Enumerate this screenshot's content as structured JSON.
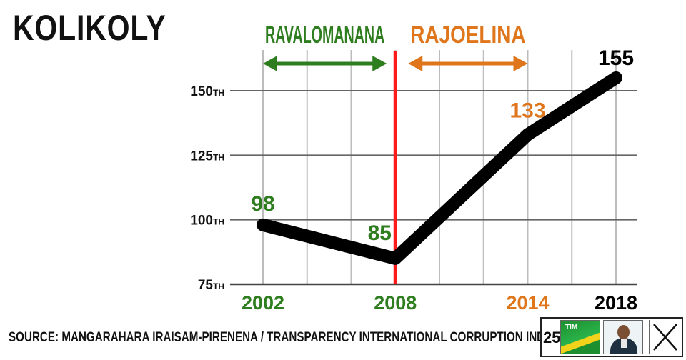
{
  "title": "KOLIKOLY",
  "source": "SOURCE: MANGARAHARA IRAISAM-PIRENENA / TRANSPARENCY INTERNATIONAL CORRUPTION INDEX",
  "colors": {
    "green": "#2e7d1e",
    "orange": "#e0761c",
    "black": "#000000",
    "red": "#ff1a1a",
    "grid": "#bdbdbd"
  },
  "chart_data": {
    "type": "line",
    "x": [
      2002,
      2008,
      2014,
      2018
    ],
    "xticks": [
      {
        "value": 2002,
        "label": "2002",
        "color": "#2e7d1e"
      },
      {
        "value": 2008,
        "label": "2008",
        "color": "#2e7d1e"
      },
      {
        "value": 2014,
        "label": "2014",
        "color": "#e0761c"
      },
      {
        "value": 2018,
        "label": "2018",
        "color": "#000000"
      }
    ],
    "xlim": [
      2002,
      2018
    ],
    "ylim": [
      75,
      155
    ],
    "yticks": [
      {
        "value": 75,
        "label": "75",
        "suffix": "TH"
      },
      {
        "value": 100,
        "label": "100",
        "suffix": "TH"
      },
      {
        "value": 125,
        "label": "125",
        "suffix": "TH"
      },
      {
        "value": 150,
        "label": "150",
        "suffix": "TH"
      }
    ],
    "grid": true,
    "series": [
      {
        "points": [
          {
            "x": 2002,
            "y": 98,
            "label": "98",
            "color": "#2e7d1e"
          },
          {
            "x": 2008,
            "y": 85,
            "label": "85",
            "color": "#2e7d1e"
          },
          {
            "x": 2014,
            "y": 133,
            "label": "133",
            "color": "#e0761c"
          },
          {
            "x": 2018,
            "y": 155,
            "label": "155",
            "color": "#000000"
          }
        ]
      }
    ],
    "divider": {
      "x": 2008,
      "color": "#ff1a1a"
    },
    "periods": [
      {
        "label": "RAVALOMANANA",
        "from": 2002,
        "to": 2008,
        "color": "#2e7d1e"
      },
      {
        "label": "RAJOELINA",
        "from": 2008,
        "to": 2014,
        "color": "#e0761c"
      }
    ]
  },
  "ballot": {
    "number": "25",
    "logo_text": "TIM",
    "mark": "cross-mark-icon"
  }
}
